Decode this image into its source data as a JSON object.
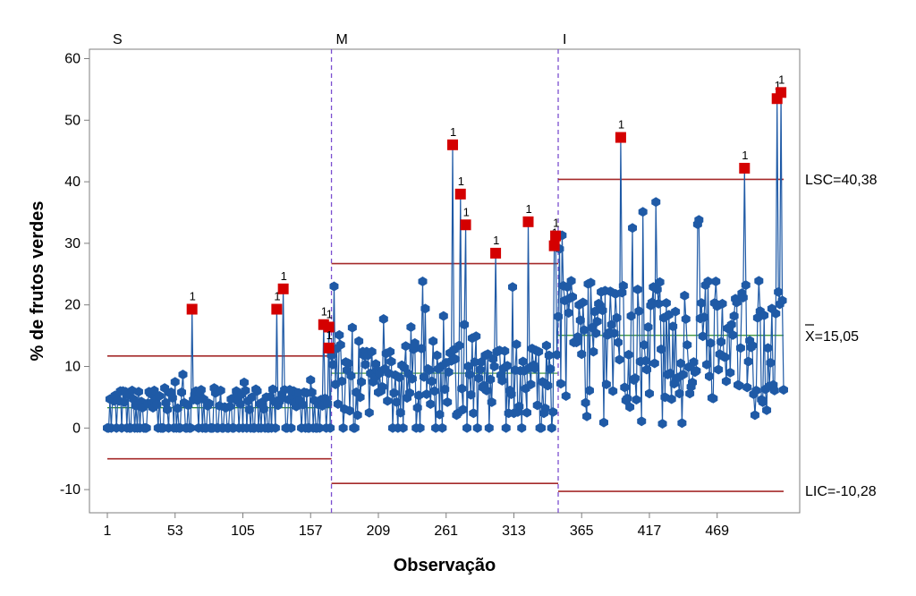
{
  "chart_data": {
    "type": "line",
    "subtype": "I chart by stages (control chart)",
    "xlabel": "Observação",
    "ylabel": "% de frutos verdes",
    "x_ticks": [
      "1",
      "53",
      "105",
      "157",
      "209",
      "261",
      "313",
      "365",
      "417",
      "469"
    ],
    "y_ticks": [
      "60",
      "50",
      "40",
      "30",
      "20",
      "10",
      "0",
      "-10"
    ],
    "xlim": [
      1,
      520
    ],
    "ylim": [
      -14,
      62
    ],
    "grid": false,
    "colors": {
      "series": "#1f5aa6",
      "out_of_control": "#d40000",
      "limit": "#a52a2a",
      "center": "#2e8b2e",
      "stage_divider": "#7b4fd0"
    },
    "stages": [
      {
        "name": "S",
        "start": 1,
        "end": 173,
        "ucl": 11.7,
        "cl": 3.3,
        "lcl": -5.0
      },
      {
        "name": "M",
        "start": 173,
        "end": 347,
        "ucl": 26.7,
        "cl": 8.9,
        "lcl": -9.0
      },
      {
        "name": "I",
        "start": 347,
        "end": 520,
        "ucl": 40.38,
        "cl": 15.05,
        "lcl": -10.28
      }
    ],
    "reference_labels": {
      "ucl": "LSC=40,38",
      "cl": "X=15,05",
      "lcl": "LIC=-10,28"
    },
    "flag_text": "1",
    "flagged_points": [
      {
        "x": 66,
        "y": 19.3
      },
      {
        "x": 131,
        "y": 19.3
      },
      {
        "x": 136,
        "y": 22.6
      },
      {
        "x": 167,
        "y": 16.8
      },
      {
        "x": 171,
        "y": 16.4
      },
      {
        "x": 171,
        "y": 13.0
      },
      {
        "x": 266,
        "y": 46.0
      },
      {
        "x": 272,
        "y": 38.0
      },
      {
        "x": 276,
        "y": 33.0
      },
      {
        "x": 299,
        "y": 28.4
      },
      {
        "x": 324,
        "y": 33.5
      },
      {
        "x": 344,
        "y": 29.6
      },
      {
        "x": 345,
        "y": 31.2
      },
      {
        "x": 395,
        "y": 47.2
      },
      {
        "x": 490,
        "y": 42.2
      },
      {
        "x": 515,
        "y": 53.5
      },
      {
        "x": 518,
        "y": 54.5
      }
    ],
    "series_description": "individual observations, one point per observation, 520 points",
    "points": []
  }
}
